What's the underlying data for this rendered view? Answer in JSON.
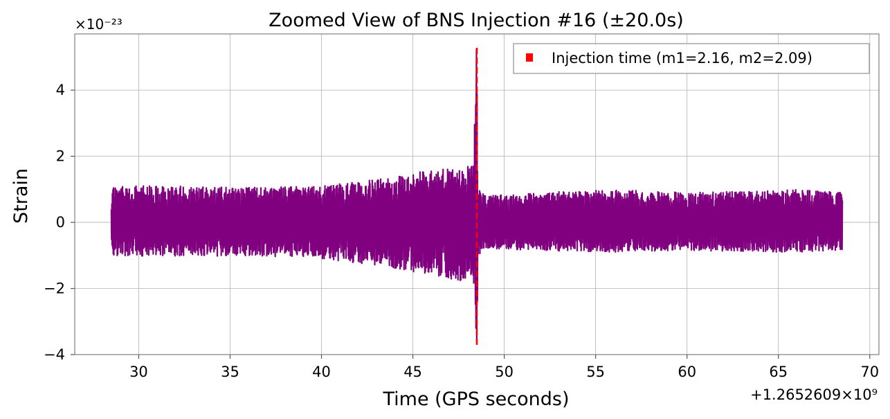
{
  "chart_data": {
    "type": "line",
    "title": "Zoomed View of BNS Injection #16 (±20.0s)",
    "xlabel": "Time (GPS seconds)",
    "ylabel": "Strain",
    "x_offset_label": "+1.2652609×10⁹",
    "y_scale_label": "×10⁻²³",
    "xlim": [
      26.5,
      70.5
    ],
    "ylim": [
      -4,
      5.7
    ],
    "x_ticks": [
      30,
      35,
      40,
      45,
      50,
      55,
      60,
      65,
      70
    ],
    "x_tick_labels": [
      "30",
      "35",
      "40",
      "45",
      "50",
      "55",
      "60",
      "65",
      "70"
    ],
    "y_ticks": [
      -4,
      -2,
      0,
      2,
      4
    ],
    "y_tick_labels": [
      "−4",
      "−2",
      "0",
      "2",
      "4"
    ],
    "grid": true,
    "series": [
      {
        "name": "Strain",
        "color": "#800080",
        "time_range": [
          28.5,
          68.5
        ],
        "envelope": {
          "t": [
            28.5,
            32,
            36,
            40,
            43,
            45,
            46.5,
            47.5,
            48.3,
            48.48,
            48.55,
            49,
            52,
            56,
            60,
            64,
            66,
            68.5
          ],
          "upper": [
            1.1,
            1.1,
            1.05,
            1.1,
            1.3,
            1.5,
            1.6,
            1.7,
            1.8,
            5.2,
            1.0,
            0.8,
            0.9,
            1.0,
            0.9,
            0.95,
            1.0,
            0.9
          ],
          "lower": [
            -1.0,
            -1.05,
            -1.0,
            -1.1,
            -1.3,
            -1.5,
            -1.65,
            -1.75,
            -2.0,
            -3.6,
            -1.0,
            -0.8,
            -0.85,
            -0.9,
            -0.85,
            -0.9,
            -0.9,
            -0.85
          ]
        }
      }
    ],
    "injection": {
      "time": 48.5,
      "color": "#ff0000",
      "legend_label": "Injection time (m1=2.16, m2=2.09)",
      "legend_position": "top-right"
    }
  }
}
